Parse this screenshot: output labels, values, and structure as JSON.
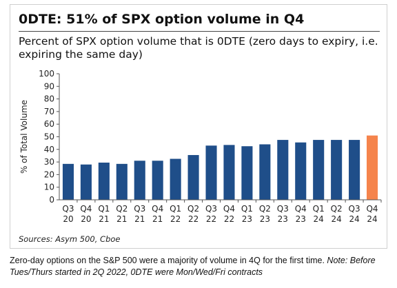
{
  "title": "0DTE: 51% of SPX option volume in Q4",
  "subtitle": "Percent of SPX option volume that is 0DTE (zero days to expiry, i.e. expiring the same day)",
  "source": "Sources: Asym 500, Cboe",
  "caption": {
    "text": "Zero-day options on the S&P 500 were a majority of volume in 4Q for the first time.",
    "note": "Note: Before Tues/Thurs started in 2Q 2022, 0DTE were Mon/Wed/Fri contracts"
  },
  "colors": {
    "bar": "#1f4e89",
    "highlight": "#f5844c",
    "axis": "#555555"
  },
  "chart_data": {
    "type": "bar",
    "title": "0DTE: 51% of SPX option volume in Q4",
    "ylabel": "% of Total Volume",
    "xlabel": "",
    "ylim": [
      0,
      100
    ],
    "yticks": [
      0,
      10,
      20,
      30,
      40,
      50,
      60,
      70,
      80,
      90,
      100
    ],
    "grid": false,
    "categories": [
      [
        "Q3",
        "20"
      ],
      [
        "Q4",
        "20"
      ],
      [
        "Q1",
        "21"
      ],
      [
        "Q2",
        "21"
      ],
      [
        "Q3",
        "21"
      ],
      [
        "Q4",
        "21"
      ],
      [
        "Q1",
        "22"
      ],
      [
        "Q2",
        "22"
      ],
      [
        "Q3",
        "22"
      ],
      [
        "Q4",
        "22"
      ],
      [
        "Q1",
        "23"
      ],
      [
        "Q2",
        "23"
      ],
      [
        "Q3",
        "23"
      ],
      [
        "Q4",
        "23"
      ],
      [
        "Q1",
        "24"
      ],
      [
        "Q2",
        "24"
      ],
      [
        "Q3",
        "24"
      ],
      [
        "Q4",
        "24"
      ]
    ],
    "values": [
      28.5,
      28,
      29.5,
      28.5,
      31,
      31,
      32.5,
      35.5,
      43,
      43.5,
      42.5,
      44,
      47.5,
      45.5,
      47.5,
      47.5,
      47.5,
      51
    ],
    "highlight_index": 17
  }
}
